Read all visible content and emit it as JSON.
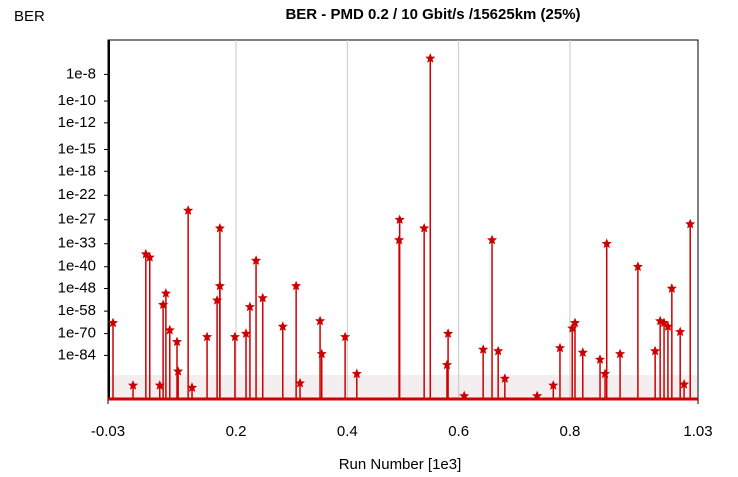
{
  "chart_data": {
    "type": "stem",
    "title": "BER - PMD 0.2 / 10 Gbit/s /15625km (25%)",
    "y_label": "BER",
    "x_label": "Run Number [1e3]",
    "color": "#cc0000",
    "y_scale": "log-neg-log",
    "grid": "x",
    "xlim": [
      -0.03,
      1.03
    ],
    "xticks": [
      -0.03,
      0.2,
      0.4,
      0.6,
      0.8,
      1.03
    ],
    "ylim": [
      1e-06,
      1e-122
    ],
    "yticks": [
      1e-08,
      1e-10,
      1e-12,
      1e-15,
      1e-18,
      1e-22,
      1e-27,
      1e-33,
      1e-40,
      1e-48,
      1e-58,
      1e-70,
      1e-84
    ],
    "x": [
      -0.021,
      0.015,
      0.038,
      0.045,
      0.063,
      0.069,
      0.074,
      0.081,
      0.094,
      0.096,
      0.114,
      0.121,
      0.148,
      0.166,
      0.171,
      0.171,
      0.198,
      0.218,
      0.225,
      0.236,
      0.248,
      0.284,
      0.308,
      0.315,
      0.351,
      0.354,
      0.396,
      0.417,
      0.493,
      0.494,
      0.538,
      0.549,
      0.579,
      0.581,
      0.61,
      0.644,
      0.66,
      0.671,
      0.683,
      0.741,
      0.77,
      0.782,
      0.804,
      0.809,
      0.823,
      0.854,
      0.863,
      0.866,
      0.89,
      0.922,
      0.953,
      0.962,
      0.969,
      0.976,
      0.983,
      0.998,
      1.005,
      1.016
    ],
    "values": [
      1e-64,
      1e-108,
      1e-36,
      1e-37,
      1e-108,
      1e-55,
      1e-50,
      1e-68,
      1e-75,
      1e-96,
      1e-25,
      1e-110,
      1e-72,
      1e-53,
      1e-47,
      1e-29,
      1e-72,
      1e-70,
      1e-56,
      1e-38,
      1e-52,
      1e-66,
      1e-47,
      1e-106,
      1e-63,
      1e-83,
      1e-72,
      1e-98,
      1e-32,
      1e-27,
      1e-29,
      1e-07,
      1e-91,
      1e-70,
      1e-118,
      1e-80,
      1e-32,
      1e-81,
      1e-102,
      1e-118,
      1e-108,
      1e-79,
      1e-67,
      1e-64,
      1e-82,
      1e-87,
      1e-98,
      1e-33,
      1e-83,
      1e-40,
      1e-81,
      1e-63,
      1e-64,
      1e-66,
      1e-48,
      1e-69,
      1e-107,
      1e-28
    ]
  }
}
